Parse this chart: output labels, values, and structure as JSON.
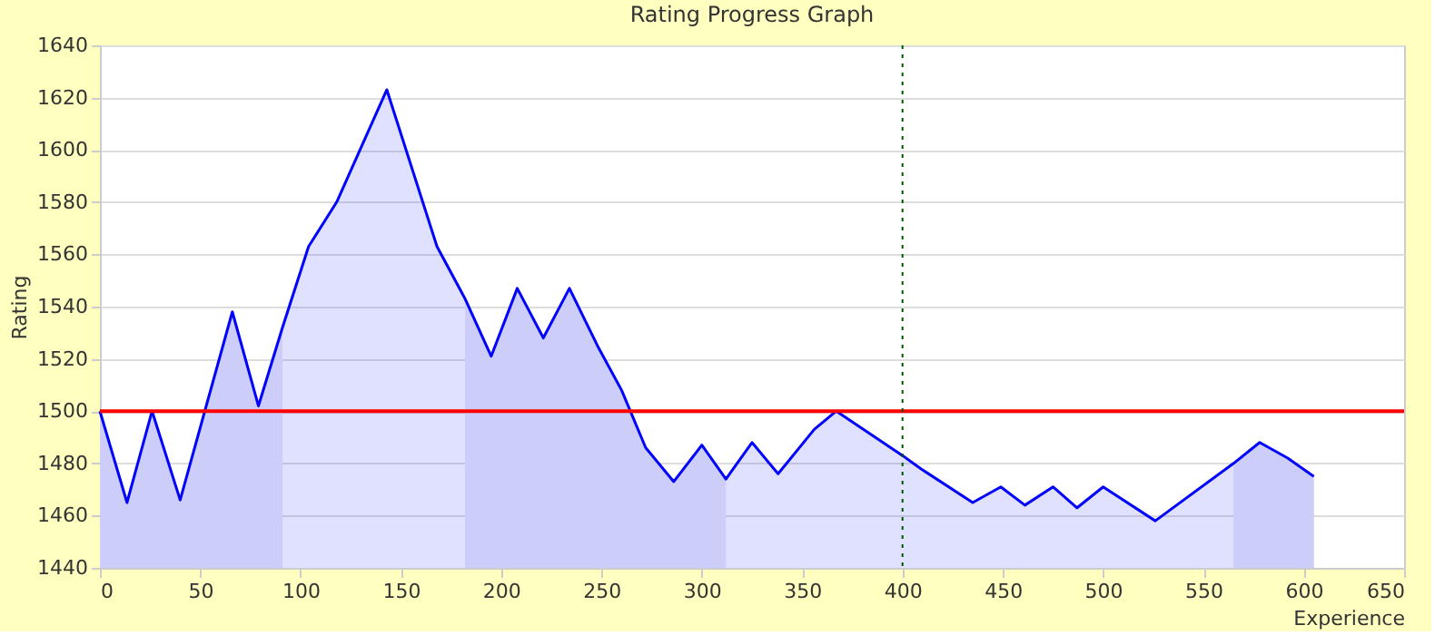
{
  "chart_data": {
    "type": "area",
    "title": "Rating Progress Graph",
    "xlabel": "Experience",
    "ylabel": "Rating",
    "series": [
      {
        "color": "#0000ff",
        "x": [
          0,
          13.5,
          26,
          40,
          66,
          79,
          91,
          104,
          118,
          143,
          168,
          182,
          195,
          208,
          221,
          234,
          248,
          260,
          272,
          286,
          300,
          312,
          325,
          338,
          356,
          367,
          400,
          409,
          435,
          449,
          461,
          475,
          487,
          500,
          526,
          565,
          578,
          592,
          605
        ],
        "values": [
          1500,
          1465,
          1500,
          1466,
          1538,
          1502,
          1532,
          1563,
          1580,
          1623,
          1563,
          1543,
          1521,
          1547,
          1528,
          1547,
          1525,
          1508,
          1486,
          1473,
          1487,
          1474,
          1488,
          1476,
          1493,
          1500,
          1483,
          1478,
          1465,
          1471,
          1464,
          1471,
          1463,
          1471,
          1458,
          1480,
          1488,
          1482,
          1475
        ]
      },
      {
        "color": "#cdcdfa",
        "x": [
          0,
          13.5,
          26,
          40,
          66,
          79,
          91
        ],
        "values": [
          1500,
          1465,
          1500,
          1466,
          1538,
          1502,
          1532
        ]
      },
      {
        "color": "#cdcdfa",
        "x": [
          182,
          195,
          208,
          221,
          234,
          248,
          260,
          272,
          286,
          300,
          312
        ],
        "values": [
          1543,
          1521,
          1547,
          1528,
          1547,
          1525,
          1508,
          1486,
          1473,
          1487,
          1474
        ]
      },
      {
        "color": "#cdcdfa",
        "x": [
          565,
          578,
          592,
          605
        ],
        "values": [
          1480,
          1488,
          1482,
          1475
        ]
      }
    ],
    "xlim": [
      0,
      650
    ],
    "xticks": [
      0,
      50,
      100,
      150,
      200,
      250,
      300,
      350,
      400,
      450,
      500,
      550,
      600,
      650
    ],
    "ylim": [
      1440,
      1640
    ],
    "yticks": [
      1440,
      1460,
      1480,
      1500,
      1520,
      1540,
      1560,
      1580,
      1600,
      1620,
      1640
    ],
    "grid": "y",
    "ref_lines": [
      {
        "axis": "y",
        "value": 1500,
        "color": "#ff0000",
        "line_style": "solid"
      },
      {
        "axis": "x",
        "value": 400,
        "color": "#005500",
        "line_style": "dotted"
      }
    ]
  }
}
